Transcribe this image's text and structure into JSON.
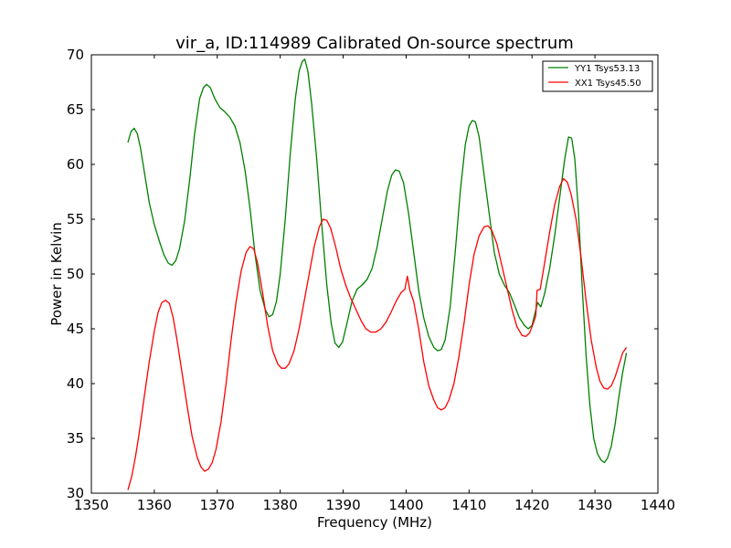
{
  "chart_data": {
    "type": "line",
    "title": "vir_a, ID:114989 Calibrated On-source spectrum",
    "xlabel": "Frequency (MHz)",
    "ylabel": "Power in Kelvin",
    "xlim": [
      1350,
      1440
    ],
    "ylim": [
      30,
      70
    ],
    "xticks": [
      1350,
      1360,
      1370,
      1380,
      1390,
      1400,
      1410,
      1420,
      1430,
      1440
    ],
    "yticks": [
      30,
      35,
      40,
      45,
      50,
      55,
      60,
      65,
      70
    ],
    "grid": false,
    "legend_position": "top-right",
    "series": [
      {
        "name": "YY1 Tsys53.13",
        "color": "#008000",
        "points": [
          [
            1355.8,
            62.0
          ],
          [
            1356.3,
            63.0
          ],
          [
            1356.8,
            63.3
          ],
          [
            1357.3,
            62.8
          ],
          [
            1357.8,
            61.5
          ],
          [
            1358.5,
            59.0
          ],
          [
            1359.2,
            56.5
          ],
          [
            1360.0,
            54.5
          ],
          [
            1360.8,
            53.0
          ],
          [
            1361.5,
            51.8
          ],
          [
            1362.2,
            51.0
          ],
          [
            1362.8,
            50.8
          ],
          [
            1363.4,
            51.2
          ],
          [
            1364.0,
            52.3
          ],
          [
            1364.8,
            54.8
          ],
          [
            1365.6,
            58.5
          ],
          [
            1366.4,
            62.8
          ],
          [
            1367.2,
            66.0
          ],
          [
            1367.8,
            67.0
          ],
          [
            1368.3,
            67.3
          ],
          [
            1368.9,
            67.0
          ],
          [
            1369.6,
            66.0
          ],
          [
            1370.4,
            65.2
          ],
          [
            1371.2,
            64.8
          ],
          [
            1372.0,
            64.3
          ],
          [
            1372.8,
            63.5
          ],
          [
            1373.6,
            62.0
          ],
          [
            1374.4,
            59.5
          ],
          [
            1375.2,
            56.0
          ],
          [
            1376.0,
            51.8
          ],
          [
            1376.8,
            48.5
          ],
          [
            1377.6,
            46.8
          ],
          [
            1378.2,
            46.1
          ],
          [
            1378.8,
            46.3
          ],
          [
            1379.4,
            47.5
          ],
          [
            1380.0,
            50.0
          ],
          [
            1380.8,
            55.0
          ],
          [
            1381.6,
            61.0
          ],
          [
            1382.4,
            66.0
          ],
          [
            1383.0,
            68.5
          ],
          [
            1383.5,
            69.4
          ],
          [
            1383.9,
            69.6
          ],
          [
            1384.4,
            68.5
          ],
          [
            1385.0,
            65.5
          ],
          [
            1385.8,
            60.5
          ],
          [
            1386.6,
            54.5
          ],
          [
            1387.4,
            49.0
          ],
          [
            1388.1,
            45.5
          ],
          [
            1388.7,
            43.7
          ],
          [
            1389.3,
            43.3
          ],
          [
            1389.9,
            43.8
          ],
          [
            1390.6,
            45.5
          ],
          [
            1391.4,
            47.5
          ],
          [
            1392.2,
            48.6
          ],
          [
            1393.0,
            49.0
          ],
          [
            1393.8,
            49.5
          ],
          [
            1394.6,
            50.5
          ],
          [
            1395.4,
            52.5
          ],
          [
            1396.2,
            55.0
          ],
          [
            1397.0,
            57.5
          ],
          [
            1397.7,
            59.0
          ],
          [
            1398.3,
            59.5
          ],
          [
            1398.9,
            59.4
          ],
          [
            1399.6,
            58.3
          ],
          [
            1400.4,
            55.5
          ],
          [
            1401.2,
            52.0
          ],
          [
            1402.0,
            48.5
          ],
          [
            1402.8,
            46.0
          ],
          [
            1403.6,
            44.3
          ],
          [
            1404.4,
            43.3
          ],
          [
            1405.0,
            43.0
          ],
          [
            1405.6,
            43.1
          ],
          [
            1406.2,
            44.0
          ],
          [
            1407.0,
            47.0
          ],
          [
            1407.8,
            52.0
          ],
          [
            1408.6,
            57.5
          ],
          [
            1409.4,
            61.8
          ],
          [
            1410.0,
            63.5
          ],
          [
            1410.5,
            64.0
          ],
          [
            1411.0,
            63.9
          ],
          [
            1411.6,
            62.5
          ],
          [
            1412.4,
            59.0
          ],
          [
            1413.2,
            55.5
          ],
          [
            1414.0,
            52.0
          ],
          [
            1414.8,
            50.0
          ],
          [
            1415.6,
            49.0
          ],
          [
            1416.4,
            48.3
          ],
          [
            1417.2,
            47.2
          ],
          [
            1418.0,
            46.0
          ],
          [
            1418.8,
            45.3
          ],
          [
            1419.4,
            45.0
          ],
          [
            1420.0,
            45.3
          ],
          [
            1420.5,
            46.5
          ],
          [
            1420.9,
            47.4
          ],
          [
            1421.4,
            47.0
          ],
          [
            1422.0,
            48.2
          ],
          [
            1422.8,
            50.5
          ],
          [
            1423.6,
            53.5
          ],
          [
            1424.4,
            57.0
          ],
          [
            1425.2,
            60.5
          ],
          [
            1425.8,
            62.5
          ],
          [
            1426.3,
            62.4
          ],
          [
            1426.8,
            60.5
          ],
          [
            1427.4,
            55.5
          ],
          [
            1428.0,
            48.5
          ],
          [
            1428.6,
            42.5
          ],
          [
            1429.2,
            38.0
          ],
          [
            1429.8,
            35.0
          ],
          [
            1430.4,
            33.6
          ],
          [
            1431.0,
            33.0
          ],
          [
            1431.5,
            32.8
          ],
          [
            1432.0,
            33.2
          ],
          [
            1432.6,
            34.3
          ],
          [
            1433.2,
            36.3
          ],
          [
            1433.8,
            38.8
          ],
          [
            1434.4,
            41.0
          ],
          [
            1435.0,
            42.8
          ]
        ]
      },
      {
        "name": "XX1 Tsys45.50",
        "color": "#ff0000",
        "points": [
          [
            1355.8,
            30.3
          ],
          [
            1356.4,
            31.5
          ],
          [
            1357.0,
            33.3
          ],
          [
            1357.6,
            35.5
          ],
          [
            1358.4,
            38.8
          ],
          [
            1359.2,
            42.0
          ],
          [
            1360.0,
            44.8
          ],
          [
            1360.6,
            46.5
          ],
          [
            1361.2,
            47.4
          ],
          [
            1361.8,
            47.6
          ],
          [
            1362.4,
            47.3
          ],
          [
            1363.0,
            46.0
          ],
          [
            1363.6,
            44.0
          ],
          [
            1364.4,
            41.0
          ],
          [
            1365.2,
            38.0
          ],
          [
            1366.0,
            35.2
          ],
          [
            1366.8,
            33.3
          ],
          [
            1367.4,
            32.4
          ],
          [
            1368.0,
            32.0
          ],
          [
            1368.6,
            32.2
          ],
          [
            1369.2,
            32.8
          ],
          [
            1369.8,
            34.0
          ],
          [
            1370.6,
            36.5
          ],
          [
            1371.4,
            40.0
          ],
          [
            1372.2,
            44.0
          ],
          [
            1373.0,
            47.5
          ],
          [
            1373.8,
            50.3
          ],
          [
            1374.6,
            52.0
          ],
          [
            1375.2,
            52.5
          ],
          [
            1375.8,
            52.3
          ],
          [
            1376.4,
            51.0
          ],
          [
            1377.2,
            48.3
          ],
          [
            1378.0,
            45.3
          ],
          [
            1378.8,
            43.0
          ],
          [
            1379.6,
            41.8
          ],
          [
            1380.2,
            41.4
          ],
          [
            1380.8,
            41.4
          ],
          [
            1381.4,
            41.8
          ],
          [
            1382.2,
            43.0
          ],
          [
            1383.0,
            45.0
          ],
          [
            1383.8,
            47.5
          ],
          [
            1384.6,
            50.0
          ],
          [
            1385.4,
            52.5
          ],
          [
            1386.2,
            54.3
          ],
          [
            1386.8,
            55.0
          ],
          [
            1387.4,
            54.9
          ],
          [
            1388.0,
            54.2
          ],
          [
            1388.8,
            52.5
          ],
          [
            1389.6,
            50.5
          ],
          [
            1390.4,
            49.0
          ],
          [
            1391.2,
            47.8
          ],
          [
            1392.0,
            46.8
          ],
          [
            1392.8,
            45.8
          ],
          [
            1393.6,
            45.0
          ],
          [
            1394.4,
            44.7
          ],
          [
            1395.2,
            44.7
          ],
          [
            1396.0,
            45.0
          ],
          [
            1396.8,
            45.6
          ],
          [
            1397.6,
            46.5
          ],
          [
            1398.4,
            47.5
          ],
          [
            1399.2,
            48.3
          ],
          [
            1399.8,
            48.6
          ],
          [
            1400.2,
            49.8
          ],
          [
            1400.6,
            48.5
          ],
          [
            1401.2,
            47.5
          ],
          [
            1402.0,
            45.0
          ],
          [
            1402.8,
            42.0
          ],
          [
            1403.6,
            39.8
          ],
          [
            1404.4,
            38.5
          ],
          [
            1405.0,
            37.8
          ],
          [
            1405.6,
            37.6
          ],
          [
            1406.2,
            37.8
          ],
          [
            1406.8,
            38.5
          ],
          [
            1407.6,
            40.0
          ],
          [
            1408.4,
            42.5
          ],
          [
            1409.2,
            45.5
          ],
          [
            1410.0,
            49.0
          ],
          [
            1410.8,
            51.8
          ],
          [
            1411.6,
            53.5
          ],
          [
            1412.4,
            54.3
          ],
          [
            1413.0,
            54.4
          ],
          [
            1413.6,
            54.0
          ],
          [
            1414.4,
            52.8
          ],
          [
            1415.2,
            50.8
          ],
          [
            1416.0,
            48.8
          ],
          [
            1416.8,
            46.8
          ],
          [
            1417.6,
            45.2
          ],
          [
            1418.4,
            44.4
          ],
          [
            1419.0,
            44.3
          ],
          [
            1419.6,
            44.6
          ],
          [
            1420.2,
            45.5
          ],
          [
            1420.6,
            46.2
          ],
          [
            1420.8,
            48.5
          ],
          [
            1421.3,
            48.6
          ],
          [
            1422.0,
            51.0
          ],
          [
            1422.8,
            53.8
          ],
          [
            1423.6,
            56.3
          ],
          [
            1424.4,
            58.0
          ],
          [
            1425.0,
            58.7
          ],
          [
            1425.6,
            58.4
          ],
          [
            1426.2,
            57.3
          ],
          [
            1427.0,
            55.0
          ],
          [
            1427.8,
            51.5
          ],
          [
            1428.6,
            47.5
          ],
          [
            1429.4,
            44.0
          ],
          [
            1430.2,
            41.5
          ],
          [
            1430.8,
            40.2
          ],
          [
            1431.4,
            39.6
          ],
          [
            1432.0,
            39.5
          ],
          [
            1432.6,
            39.8
          ],
          [
            1433.2,
            40.6
          ],
          [
            1433.8,
            41.7
          ],
          [
            1434.4,
            42.8
          ],
          [
            1435.0,
            43.3
          ]
        ]
      }
    ]
  }
}
